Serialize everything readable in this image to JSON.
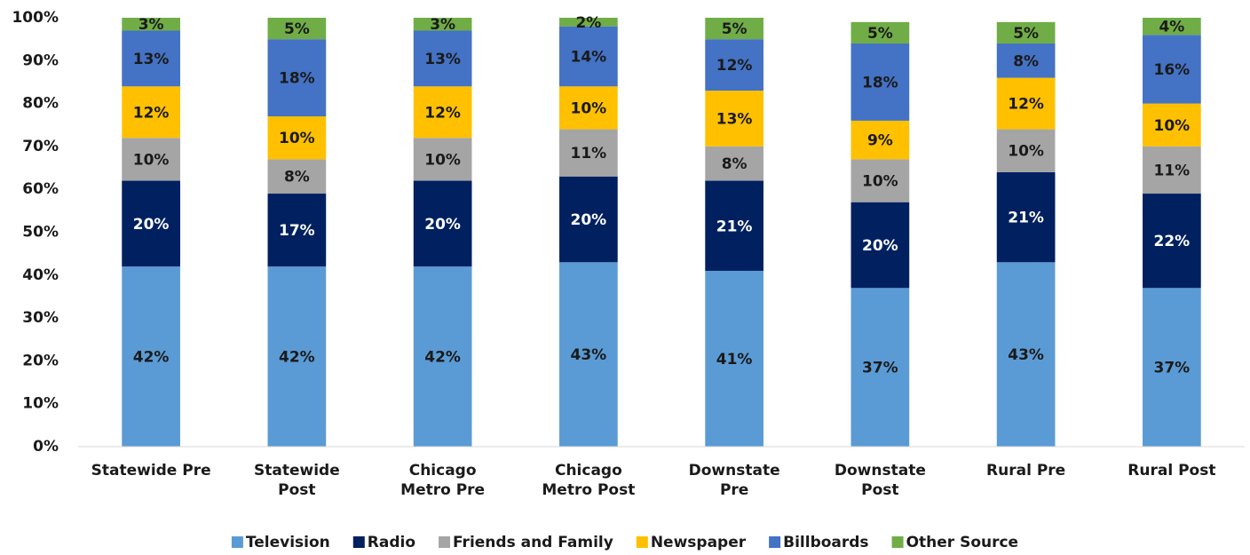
{
  "chart_data": {
    "type": "stacked_bar",
    "categories": [
      "Statewide Pre",
      "Statewide Post",
      "Chicago Metro Pre",
      "Chicago Metro Post",
      "Downstate Pre",
      "Downstate Post",
      "Rural Pre",
      "Rural Post"
    ],
    "series": [
      {
        "name": "Television",
        "color": "#5b9bd5",
        "values": [
          42,
          42,
          42,
          43,
          41,
          37,
          43,
          37
        ],
        "value_labels": [
          "42%",
          "42%",
          "42%",
          "43%",
          "41%",
          "37%",
          "43%",
          "37%"
        ]
      },
      {
        "name": "Radio",
        "color": "#002060",
        "values": [
          20,
          17,
          20,
          20,
          21,
          20,
          21,
          22
        ],
        "value_labels": [
          "20%",
          "17%",
          "20%",
          "20%",
          "21%",
          "20%",
          "21%",
          "22%"
        ]
      },
      {
        "name": "Friends and Family",
        "color": "#a5a5a5",
        "values": [
          10,
          8,
          10,
          11,
          8,
          10,
          10,
          11
        ],
        "value_labels": [
          "10%",
          "8%",
          "10%",
          "11%",
          "8%",
          "10%",
          "10%",
          "11%"
        ]
      },
      {
        "name": "Newspaper",
        "color": "#ffc000",
        "values": [
          12,
          10,
          12,
          10,
          13,
          9,
          12,
          10
        ],
        "value_labels": [
          "12%",
          "10%",
          "12%",
          "10%",
          "13%",
          "9%",
          "12%",
          "10%"
        ]
      },
      {
        "name": "Billboards",
        "color": "#4472c4",
        "values": [
          13,
          18,
          13,
          14,
          12,
          18,
          8,
          16
        ],
        "value_labels": [
          "13%",
          "18%",
          "13%",
          "14%",
          "12%",
          "18%",
          "8%",
          "16%"
        ]
      },
      {
        "name": "Other Source",
        "color": "#70ad47",
        "values": [
          3,
          5,
          3,
          2,
          5,
          5,
          5,
          4
        ],
        "value_labels": [
          "3%",
          "5%",
          "3%",
          "2%",
          "5%",
          "5%",
          "5%",
          "4%"
        ]
      }
    ],
    "ylim": [
      0,
      100
    ],
    "yticks": [
      {
        "value": 0,
        "label": "0%"
      },
      {
        "value": 10,
        "label": "10%"
      },
      {
        "value": 20,
        "label": "20%"
      },
      {
        "value": 30,
        "label": "30%"
      },
      {
        "value": 40,
        "label": "40%"
      },
      {
        "value": 50,
        "label": "50%"
      },
      {
        "value": 60,
        "label": "60%"
      },
      {
        "value": 70,
        "label": "70%"
      },
      {
        "value": 80,
        "label": "80%"
      },
      {
        "value": 90,
        "label": "90%"
      },
      {
        "value": 100,
        "label": "100%"
      }
    ],
    "legend": "bottom"
  }
}
